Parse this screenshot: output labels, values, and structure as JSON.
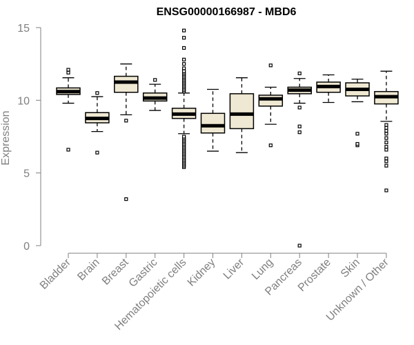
{
  "chart_data": {
    "type": "boxplot",
    "title": "ENSG00000166987 - MBD6",
    "xlabel": "",
    "ylabel": "Expression",
    "ylim": [
      0,
      15
    ],
    "yticks": [
      0,
      5,
      10,
      15
    ],
    "grid": false,
    "colors": {
      "box_fill": "#efe8d2",
      "box_stroke": "#000000",
      "axis": "#7f7f7f",
      "title": "#000000"
    },
    "categories": [
      "Bladder",
      "Brain",
      "Breast",
      "Gastric",
      "Hematopoietic cells",
      "Kidney",
      "Liver",
      "Lung",
      "Pancreas",
      "Prostate",
      "Skin",
      "Unknown / Other"
    ],
    "boxes": [
      {
        "name": "Bladder",
        "q1": 10.4,
        "median": 10.6,
        "q3": 10.85,
        "whisker_low": 9.8,
        "whisker_high": 11.55,
        "outliers": [
          6.6,
          11.9,
          12.1
        ]
      },
      {
        "name": "Brain",
        "q1": 8.45,
        "median": 8.75,
        "q3": 9.15,
        "whisker_low": 7.85,
        "whisker_high": 10.25,
        "outliers": [
          6.4,
          10.5
        ]
      },
      {
        "name": "Breast",
        "q1": 10.55,
        "median": 11.25,
        "q3": 11.65,
        "whisker_low": 9.0,
        "whisker_high": 12.5,
        "outliers": [
          3.2,
          8.6
        ]
      },
      {
        "name": "Gastric",
        "q1": 9.95,
        "median": 10.15,
        "q3": 10.5,
        "whisker_low": 9.3,
        "whisker_high": 11.1,
        "outliers": [
          11.4
        ]
      },
      {
        "name": "Hematopoietic cells",
        "q1": 8.75,
        "median": 9.05,
        "q3": 9.45,
        "whisker_low": 7.7,
        "whisker_high": 10.5,
        "outliers": [
          5.4,
          5.5,
          5.6,
          5.7,
          5.8,
          5.9,
          6.0,
          6.1,
          6.2,
          6.3,
          6.4,
          6.5,
          6.6,
          6.7,
          6.8,
          6.9,
          7.0,
          7.1,
          7.2,
          7.3,
          7.4,
          7.5,
          10.6,
          10.7,
          10.8,
          10.9,
          11.0,
          11.1,
          11.2,
          11.3,
          11.4,
          11.5,
          11.6,
          11.7,
          11.8,
          11.9,
          12.0,
          12.2,
          12.5,
          12.8,
          13.6,
          14.3,
          14.8
        ]
      },
      {
        "name": "Kidney",
        "q1": 7.75,
        "median": 8.25,
        "q3": 9.1,
        "whisker_low": 6.5,
        "whisker_high": 10.75,
        "outliers": []
      },
      {
        "name": "Liver",
        "q1": 8.05,
        "median": 9.05,
        "q3": 10.45,
        "whisker_low": 6.4,
        "whisker_high": 11.55,
        "outliers": []
      },
      {
        "name": "Lung",
        "q1": 9.6,
        "median": 10.1,
        "q3": 10.35,
        "whisker_low": 8.35,
        "whisker_high": 10.9,
        "outliers": [
          6.9,
          12.4
        ]
      },
      {
        "name": "Pancreas",
        "q1": 10.45,
        "median": 10.7,
        "q3": 10.9,
        "whisker_low": 9.8,
        "whisker_high": 11.5,
        "outliers": [
          0.0,
          7.8,
          8.2,
          9.5,
          11.85
        ]
      },
      {
        "name": "Prostate",
        "q1": 10.55,
        "median": 10.95,
        "q3": 11.25,
        "whisker_low": 9.85,
        "whisker_high": 11.75,
        "outliers": []
      },
      {
        "name": "Skin",
        "q1": 10.3,
        "median": 10.75,
        "q3": 11.2,
        "whisker_low": 9.9,
        "whisker_high": 11.45,
        "outliers": [
          6.9,
          7.0,
          7.7
        ]
      },
      {
        "name": "Unknown / Other",
        "q1": 9.75,
        "median": 10.25,
        "q3": 10.6,
        "whisker_low": 8.55,
        "whisker_high": 12.0,
        "outliers": [
          3.8,
          5.5,
          5.8,
          6.0,
          6.6,
          6.8,
          7.1,
          7.4,
          7.7,
          7.9,
          8.1,
          8.3
        ]
      }
    ]
  }
}
